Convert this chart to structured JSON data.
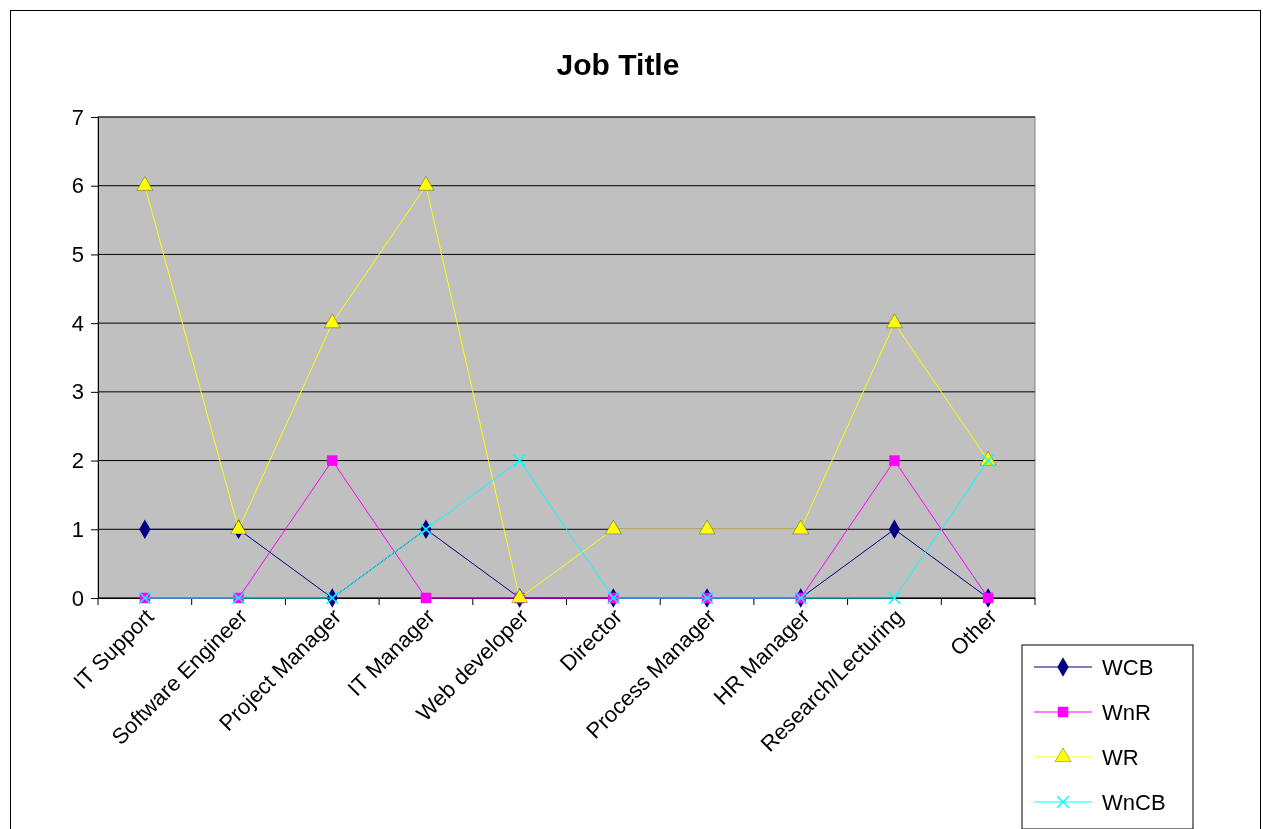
{
  "chart_data": {
    "type": "line",
    "title": "Job Title",
    "categories": [
      "IT Support",
      "Software Engineer",
      "Project Manager",
      "IT Manager",
      "Web developer",
      "Director",
      "Process Manager",
      "HR Manager",
      "Research/Lecturing",
      "Other"
    ],
    "series": [
      {
        "name": "WCB",
        "color": "#000080",
        "marker": "diamond",
        "values": [
          1,
          1,
          0,
          1,
          0,
          0,
          0,
          0,
          1,
          0
        ]
      },
      {
        "name": "WnR",
        "color": "#ff00ff",
        "marker": "square",
        "values": [
          0,
          0,
          2,
          0,
          0,
          0,
          0,
          0,
          2,
          0
        ]
      },
      {
        "name": "WR",
        "color": "#ffff00",
        "marker": "triangle",
        "values": [
          6,
          1,
          4,
          6,
          0,
          1,
          1,
          1,
          4,
          2
        ]
      },
      {
        "name": "WnCB",
        "color": "#00ffff",
        "marker": "cross",
        "values": [
          0,
          0,
          0,
          1,
          2,
          0,
          0,
          0,
          0,
          2
        ]
      }
    ],
    "ylim": [
      0,
      7
    ],
    "yticks": [
      0,
      1,
      2,
      3,
      4,
      5,
      6,
      7
    ],
    "grid": "y",
    "legend": "bottom right"
  }
}
